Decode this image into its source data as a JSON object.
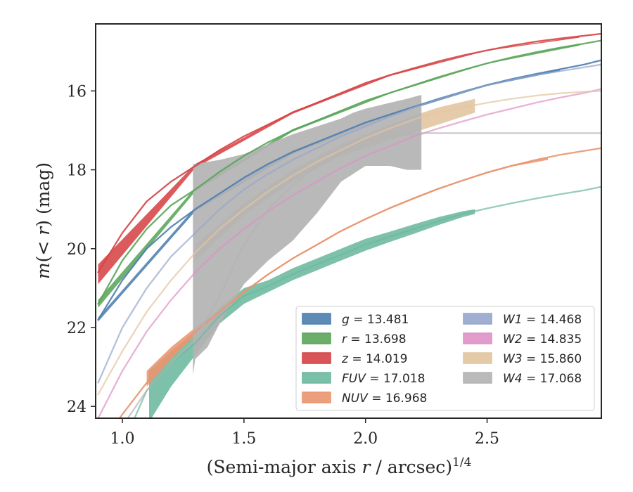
{
  "chart_data": {
    "type": "line",
    "xlabel_main": "(Semi-major axis ",
    "xlabel_var": "r",
    "xlabel_unit": " / arcsec)",
    "xlabel_exp": "1/4",
    "ylabel_m": "m",
    "ylabel_paren_open": "(< ",
    "ylabel_var": "r",
    "ylabel_close": ") (mag)",
    "xlim": [
      0.89,
      2.97
    ],
    "ylim": [
      24.3,
      14.3
    ],
    "y_inverted": true,
    "xticks": [
      {
        "value": 1.0,
        "label": "1.0"
      },
      {
        "value": 1.5,
        "label": "1.5"
      },
      {
        "value": 2.0,
        "label": "2.0"
      },
      {
        "value": 2.5,
        "label": "2.5"
      }
    ],
    "yticks": [
      {
        "value": 16,
        "label": "16"
      },
      {
        "value": 18,
        "label": "18"
      },
      {
        "value": 20,
        "label": "20"
      },
      {
        "value": 22,
        "label": "22"
      },
      {
        "value": 24,
        "label": "24"
      }
    ],
    "grid": false,
    "legend_position": "lower-right",
    "series": [
      {
        "key": "g",
        "label_var": "g",
        "label_value": " = 13.481",
        "color": "#4c7eae",
        "x": [
          0.9,
          1.0,
          1.1,
          1.2,
          1.3,
          1.4,
          1.5,
          1.6,
          1.7,
          1.8,
          1.9,
          2.0,
          2.1,
          2.2,
          2.3,
          2.4,
          2.5,
          2.6,
          2.7,
          2.8,
          2.9,
          2.97
        ],
        "y": [
          21.8,
          20.8,
          20.0,
          19.45,
          19.0,
          18.6,
          18.2,
          17.85,
          17.55,
          17.3,
          17.05,
          16.8,
          16.6,
          16.4,
          16.2,
          16.02,
          15.85,
          15.7,
          15.57,
          15.45,
          15.33,
          15.22
        ],
        "band_x": [
          0.9,
          1.3,
          1.7,
          2.1,
          2.5,
          2.8
        ],
        "band_lo": [
          21.75,
          18.95,
          17.5,
          16.57,
          15.83,
          15.45
        ],
        "band_hi": [
          21.85,
          19.05,
          17.6,
          16.63,
          15.87,
          15.5
        ]
      },
      {
        "key": "r",
        "label_var": "r",
        "label_value": " = 13.698",
        "color": "#5aa55a",
        "x": [
          0.9,
          1.0,
          1.1,
          1.2,
          1.3,
          1.4,
          1.5,
          1.6,
          1.7,
          1.8,
          1.9,
          2.0,
          2.1,
          2.2,
          2.3,
          2.4,
          2.5,
          2.6,
          2.7,
          2.8,
          2.9,
          2.97
        ],
        "y": [
          21.4,
          20.3,
          19.5,
          18.9,
          18.5,
          18.05,
          17.65,
          17.3,
          17.0,
          16.75,
          16.5,
          16.25,
          16.05,
          15.85,
          15.65,
          15.47,
          15.3,
          15.15,
          15.02,
          14.9,
          14.8,
          14.72
        ],
        "band_x": [
          0.9,
          1.3,
          1.7,
          2.1,
          2.5,
          2.88
        ],
        "band_lo": [
          21.3,
          18.45,
          16.97,
          16.03,
          15.29,
          14.8
        ],
        "band_hi": [
          21.5,
          18.55,
          17.03,
          16.07,
          15.31,
          14.85
        ]
      },
      {
        "key": "z",
        "label_var": "z",
        "label_value": " = 14.019",
        "color": "#d64345",
        "x": [
          0.9,
          1.0,
          1.1,
          1.2,
          1.3,
          1.4,
          1.5,
          1.6,
          1.7,
          1.8,
          1.9,
          2.0,
          2.1,
          2.2,
          2.3,
          2.4,
          2.5,
          2.6,
          2.7,
          2.8,
          2.9,
          2.97
        ],
        "y": [
          20.6,
          19.6,
          18.8,
          18.3,
          17.9,
          17.5,
          17.15,
          16.85,
          16.55,
          16.3,
          16.05,
          15.8,
          15.6,
          15.42,
          15.25,
          15.1,
          14.97,
          14.85,
          14.75,
          14.67,
          14.6,
          14.55
        ],
        "band_x": [
          0.9,
          1.3,
          1.7,
          2.1,
          2.5,
          2.88
        ],
        "band_lo": [
          20.4,
          17.85,
          16.52,
          15.58,
          14.96,
          14.62
        ],
        "band_hi": [
          20.9,
          17.95,
          16.58,
          15.62,
          14.98,
          14.65
        ]
      },
      {
        "key": "FUV",
        "label_var": "FUV",
        "label_value": " = 17.018",
        "color": "#6cb89e",
        "x": [
          0.9,
          1.0,
          1.1,
          1.2,
          1.3,
          1.4,
          1.5,
          1.6,
          1.7,
          1.8,
          1.9,
          2.0,
          2.1,
          2.2,
          2.3,
          2.4,
          2.45,
          2.5,
          2.6,
          2.7,
          2.8,
          2.9,
          2.97
        ],
        "y": [
          26.0,
          25.0,
          23.6,
          22.9,
          22.4,
          21.7,
          21.2,
          20.95,
          20.65,
          20.4,
          20.15,
          19.9,
          19.7,
          19.5,
          19.3,
          19.12,
          19.05,
          18.98,
          18.85,
          18.73,
          18.62,
          18.52,
          18.43
        ],
        "band_x": [
          1.11,
          1.2,
          1.3,
          1.4,
          1.5,
          1.6,
          1.7,
          1.8,
          1.9,
          2.0,
          2.1,
          2.2,
          2.3,
          2.4,
          2.45
        ],
        "band_lo": [
          23.1,
          22.6,
          22.1,
          21.5,
          21.0,
          20.8,
          20.5,
          20.25,
          20.0,
          19.75,
          19.57,
          19.38,
          19.2,
          19.05,
          19.0
        ],
        "band_hi": [
          24.4,
          23.5,
          22.7,
          21.9,
          21.4,
          21.1,
          20.8,
          20.55,
          20.3,
          20.05,
          19.83,
          19.62,
          19.4,
          19.2,
          19.12
        ]
      },
      {
        "key": "NUV",
        "label_var": "NUV",
        "label_value": " = 16.968",
        "color": "#e9956e",
        "x": [
          0.9,
          1.0,
          1.1,
          1.2,
          1.3,
          1.4,
          1.5,
          1.6,
          1.7,
          1.8,
          1.9,
          2.0,
          2.1,
          2.2,
          2.3,
          2.4,
          2.5,
          2.6,
          2.7,
          2.8,
          2.9,
          2.97
        ],
        "y": [
          25.1,
          24.2,
          23.4,
          22.7,
          22.1,
          21.6,
          21.1,
          20.65,
          20.25,
          19.9,
          19.55,
          19.25,
          18.97,
          18.72,
          18.48,
          18.27,
          18.07,
          17.9,
          17.75,
          17.62,
          17.52,
          17.45
        ],
        "band_x": [
          1.1,
          1.2,
          1.3,
          1.4,
          1.5,
          1.6,
          1.7,
          1.8,
          1.9,
          2.0,
          2.1,
          2.2,
          2.3,
          2.4,
          2.5,
          2.6,
          2.75
        ],
        "band_lo": [
          23.1,
          22.5,
          22.0,
          21.55,
          21.07,
          20.63,
          20.23,
          19.88,
          19.53,
          19.23,
          18.95,
          18.7,
          18.46,
          18.25,
          18.05,
          17.88,
          17.7
        ],
        "band_hi": [
          23.5,
          22.8,
          22.2,
          21.65,
          21.13,
          20.67,
          20.27,
          19.92,
          19.57,
          19.27,
          18.99,
          18.74,
          18.5,
          18.29,
          18.09,
          17.92,
          17.75
        ]
      },
      {
        "key": "W1",
        "label_var": "W1",
        "label_value": " = 14.468",
        "color": "#95a6cc",
        "x": [
          0.9,
          1.0,
          1.1,
          1.2,
          1.3,
          1.4,
          1.5,
          1.6,
          1.7,
          1.8,
          1.9,
          2.0,
          2.1,
          2.2,
          2.3,
          2.4,
          2.5,
          2.6,
          2.7,
          2.8,
          2.9,
          2.97
        ],
        "y": [
          23.4,
          22.0,
          21.0,
          20.2,
          19.6,
          19.0,
          18.5,
          18.1,
          17.75,
          17.45,
          17.15,
          16.9,
          16.65,
          16.42,
          16.22,
          16.03,
          15.86,
          15.72,
          15.6,
          15.5,
          15.4,
          15.33
        ]
      },
      {
        "key": "W2",
        "label_var": "W2",
        "label_value": " = 14.835",
        "color": "#de91c5",
        "x": [
          0.9,
          1.0,
          1.1,
          1.2,
          1.3,
          1.4,
          1.5,
          1.6,
          1.7,
          1.8,
          1.9,
          2.0,
          2.1,
          2.2,
          2.3,
          2.4,
          2.5,
          2.6,
          2.7,
          2.8,
          2.9,
          2.97
        ],
        "y": [
          24.3,
          23.1,
          22.1,
          21.3,
          20.6,
          20.0,
          19.5,
          19.05,
          18.65,
          18.3,
          17.95,
          17.65,
          17.4,
          17.15,
          16.95,
          16.77,
          16.6,
          16.45,
          16.3,
          16.17,
          16.05,
          15.95
        ]
      },
      {
        "key": "W3",
        "label_var": "W3",
        "label_value": " = 15.860",
        "color": "#e2c49f",
        "x": [
          0.9,
          1.0,
          1.1,
          1.2,
          1.3,
          1.4,
          1.5,
          1.6,
          1.7,
          1.8,
          1.9,
          2.0,
          2.1,
          2.2,
          2.3,
          2.4,
          2.5,
          2.6,
          2.7,
          2.8,
          2.9,
          2.97
        ],
        "y": [
          23.7,
          22.6,
          21.6,
          20.8,
          20.1,
          19.5,
          19.0,
          18.55,
          18.15,
          17.8,
          17.5,
          17.2,
          16.95,
          16.72,
          16.55,
          16.42,
          16.3,
          16.2,
          16.12,
          16.06,
          16.02,
          16.0
        ],
        "band_x": [
          1.3,
          1.5,
          1.7,
          1.9,
          2.05,
          2.2,
          2.3,
          2.45
        ],
        "band_lo": [
          19.9,
          18.85,
          18.0,
          17.35,
          16.98,
          16.62,
          16.42,
          16.2
        ],
        "band_hi": [
          20.3,
          19.15,
          18.3,
          17.65,
          17.35,
          17.05,
          16.85,
          16.55
        ]
      },
      {
        "key": "W4",
        "label_var": "W4",
        "label_value": " = 17.068",
        "color": "#b3b3b3",
        "x": [
          0.9,
          1.0,
          1.1,
          1.2,
          1.3,
          1.4,
          1.5,
          1.6,
          1.7,
          1.8,
          1.9,
          2.0,
          2.1,
          2.2,
          2.23,
          2.3,
          2.5,
          2.7,
          2.97
        ],
        "y": [
          25.5,
          24.5,
          23.6,
          22.9,
          22.3,
          21.2,
          19.9,
          19.0,
          18.4,
          17.9,
          17.55,
          17.25,
          17.15,
          17.1,
          17.07,
          17.07,
          17.07,
          17.07,
          17.07
        ],
        "band_x": [
          1.29,
          1.3,
          1.35,
          1.4,
          1.5,
          1.6,
          1.7,
          1.8,
          1.9,
          1.95,
          2.0,
          2.1,
          2.17,
          2.2,
          2.23
        ],
        "band_hi": [
          17.85,
          17.85,
          17.8,
          17.75,
          17.6,
          17.35,
          17.1,
          16.9,
          16.7,
          16.55,
          16.45,
          16.3,
          16.2,
          16.15,
          16.1
        ],
        "band_lo": [
          23.2,
          22.8,
          22.5,
          21.9,
          20.9,
          20.3,
          19.8,
          19.1,
          18.3,
          18.1,
          17.9,
          17.9,
          18.0,
          18.0,
          18.0
        ]
      }
    ]
  }
}
